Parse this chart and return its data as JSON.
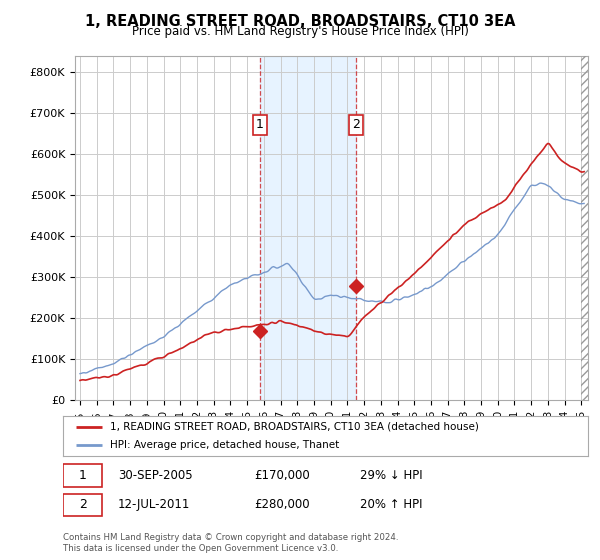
{
  "title": "1, READING STREET ROAD, BROADSTAIRS, CT10 3EA",
  "subtitle": "Price paid vs. HM Land Registry's House Price Index (HPI)",
  "ylabel_ticks": [
    "£0",
    "£100K",
    "£200K",
    "£300K",
    "£400K",
    "£500K",
    "£600K",
    "£700K",
    "£800K"
  ],
  "ytick_values": [
    0,
    100000,
    200000,
    300000,
    400000,
    500000,
    600000,
    700000,
    800000
  ],
  "ylim": [
    0,
    840000
  ],
  "xlim_start": 1994.7,
  "xlim_end": 2025.4,
  "hpi_color": "#7799cc",
  "price_color": "#cc2222",
  "sale1_date": 2005.75,
  "sale1_price": 170000,
  "sale1_label": "1",
  "sale2_date": 2011.54,
  "sale2_price": 280000,
  "sale2_label": "2",
  "legend_line1": "1, READING STREET ROAD, BROADSTAIRS, CT10 3EA (detached house)",
  "legend_line2": "HPI: Average price, detached house, Thanet",
  "background_color": "#ffffff",
  "plot_bg_color": "#ffffff",
  "grid_color": "#cccccc",
  "shade_color": "#ddeeff",
  "footer": "Contains HM Land Registry data © Crown copyright and database right 2024.\nThis data is licensed under the Open Government Licence v3.0."
}
